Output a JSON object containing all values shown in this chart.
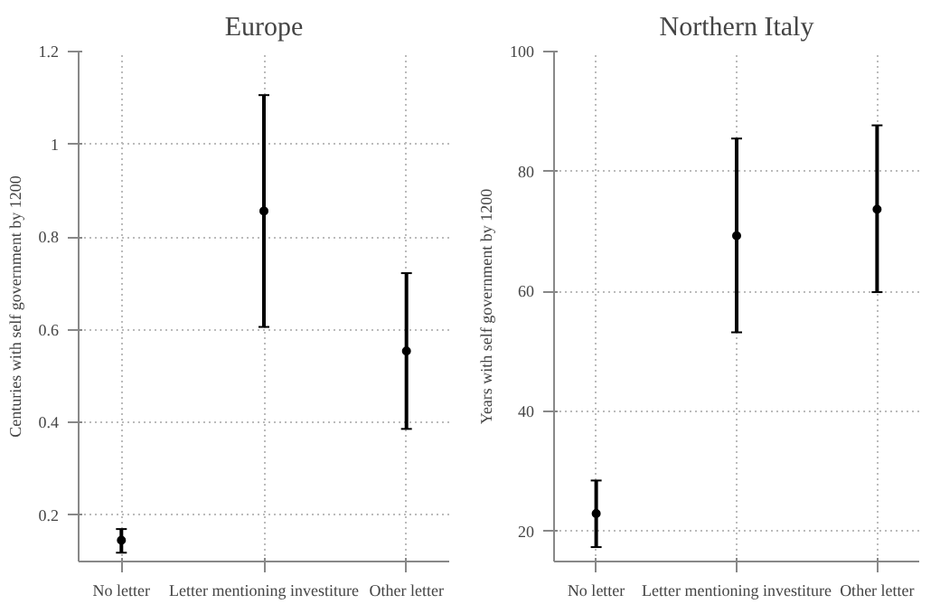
{
  "chart_data": [
    {
      "type": "scatter",
      "title": "Europe",
      "ylabel": "Centuries with self government by 1200",
      "categories": [
        "No letter",
        "Letter mentioning investiture",
        "Other letter"
      ],
      "values": [
        0.146,
        0.856,
        0.554
      ],
      "errors": [
        [
          0.119,
          0.17
        ],
        [
          0.606,
          1.106
        ],
        [
          0.386,
          0.722
        ]
      ],
      "color": "#000000",
      "marker": "circle",
      "ylim": [
        0.1,
        1.2
      ],
      "yticks": [
        0.2,
        0.4,
        0.6,
        0.8,
        1,
        1.2
      ],
      "grid": true
    },
    {
      "type": "scatter",
      "title": "Northern Italy",
      "ylabel": "Years with self government by 1200",
      "categories": [
        "No letter",
        "Letter mentioning investiture",
        "Other letter"
      ],
      "values": [
        23.0,
        69.3,
        73.7
      ],
      "errors": [
        [
          17.4,
          28.5
        ],
        [
          53.2,
          85.5
        ],
        [
          59.9,
          87.7
        ]
      ],
      "color": "#000000",
      "marker": "circle",
      "ylim": [
        15,
        100
      ],
      "yticks": [
        20,
        40,
        60,
        80,
        100
      ],
      "grid": true
    }
  ]
}
